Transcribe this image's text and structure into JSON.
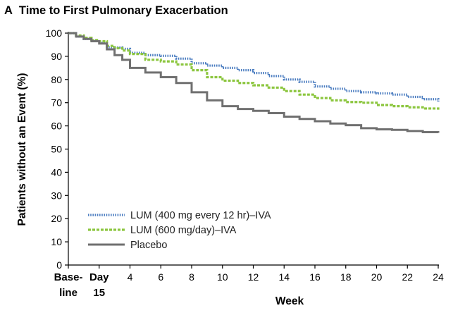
{
  "panel": {
    "letter": "A",
    "title": "Time to First Pulmonary Exacerbation"
  },
  "chart_data": {
    "type": "line",
    "title": "Time to First Pulmonary Exacerbation",
    "xlabel": "Week",
    "ylabel": "Patients without an Event (%)",
    "xlim": [
      0,
      24
    ],
    "ylim": [
      0,
      100
    ],
    "y_ticks": [
      0,
      10,
      20,
      30,
      40,
      50,
      60,
      70,
      80,
      90,
      100
    ],
    "x_ticks": [
      {
        "value": 0,
        "line1": "Base-",
        "line2": "line",
        "bold": true
      },
      {
        "value": 2,
        "line1": "Day",
        "line2": "15",
        "bold": true
      },
      {
        "value": 4,
        "line1": "4",
        "line2": "",
        "bold": false
      },
      {
        "value": 6,
        "line1": "6",
        "line2": "",
        "bold": false
      },
      {
        "value": 8,
        "line1": "8",
        "line2": "",
        "bold": false
      },
      {
        "value": 10,
        "line1": "10",
        "line2": "",
        "bold": false
      },
      {
        "value": 12,
        "line1": "12",
        "line2": "",
        "bold": false
      },
      {
        "value": 14,
        "line1": "14",
        "line2": "",
        "bold": false
      },
      {
        "value": 16,
        "line1": "16",
        "line2": "",
        "bold": false
      },
      {
        "value": 18,
        "line1": "18",
        "line2": "",
        "bold": false
      },
      {
        "value": 20,
        "line1": "20",
        "line2": "",
        "bold": false
      },
      {
        "value": 22,
        "line1": "22",
        "line2": "",
        "bold": false
      },
      {
        "value": 24,
        "line1": "24",
        "line2": "",
        "bold": false
      }
    ],
    "legend_position": "lower-left",
    "series": [
      {
        "name": "LUM (400 mg every 12 hr)–IVA",
        "color": "#4a7cc0",
        "style": "dotted",
        "x": [
          0,
          0.5,
          1,
          1.5,
          2,
          2.5,
          3,
          3.5,
          4,
          5,
          6,
          7,
          8,
          9,
          10,
          11,
          12,
          13,
          14,
          15,
          16,
          17,
          18,
          19,
          20,
          21,
          22,
          23,
          24
        ],
        "y": [
          100,
          98.5,
          97.5,
          96.8,
          95.8,
          94,
          93.8,
          93.2,
          91.5,
          90.5,
          90.2,
          89,
          87,
          86,
          85,
          84,
          82.8,
          81.5,
          80,
          79,
          77,
          76,
          75,
          74.5,
          74,
          73.5,
          72.5,
          71.5,
          70.5
        ]
      },
      {
        "name": "LUM (600 mg/day)–IVA",
        "color": "#8cc63f",
        "style": "dashed",
        "x": [
          0,
          0.5,
          1,
          1.5,
          2,
          2.5,
          3,
          3.5,
          4,
          5,
          6,
          7,
          8,
          9,
          10,
          11,
          12,
          13,
          14,
          15,
          16,
          17,
          18,
          19,
          20,
          21,
          22,
          23,
          24
        ],
        "y": [
          100,
          99,
          98,
          97,
          96.5,
          94.5,
          93.5,
          92.5,
          91,
          88.5,
          87.8,
          86.5,
          84,
          81,
          79.5,
          78.5,
          77.5,
          76.5,
          75,
          73.5,
          72,
          71,
          70.3,
          70,
          69,
          68.5,
          68,
          67.5,
          67
        ]
      },
      {
        "name": "Placebo",
        "color": "#707070",
        "style": "solid",
        "x": [
          0,
          0.5,
          1,
          1.5,
          2,
          2.5,
          3,
          3.5,
          4,
          5,
          6,
          7,
          8,
          9,
          10,
          11,
          12,
          13,
          14,
          15,
          16,
          17,
          18,
          19,
          20,
          21,
          22,
          23,
          24
        ],
        "y": [
          100,
          98.5,
          97.5,
          96.5,
          95.5,
          93,
          90.5,
          88.5,
          85,
          83,
          81,
          78.5,
          74.5,
          71,
          68.5,
          67.3,
          66.5,
          65.5,
          64,
          63,
          62,
          61,
          60.3,
          59,
          58.5,
          58.3,
          57.8,
          57.3,
          57
        ]
      }
    ]
  }
}
